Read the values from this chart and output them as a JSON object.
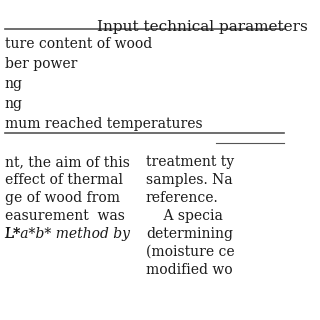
{
  "title": "Input technical parameters",
  "rows": [
    "ture content of wood",
    "ber power",
    "ng",
    "ng",
    "mum reached temperatures"
  ],
  "paragraph_left": [
    "nt, the aim of this",
    "effect of thermal",
    "ge of wood from",
    "easurement  was",
    "L*a*b* method by"
  ],
  "paragraph_right": [
    "treatment ty",
    "samples. Na",
    "reference.",
    "    A specia",
    "determining",
    "(moisture cе",
    "modified wо"
  ],
  "bg_color": "#f5f5f5",
  "text_color": "#1a1a1a",
  "font_size_title": 11,
  "font_size_body": 10,
  "line_color": "#555555"
}
